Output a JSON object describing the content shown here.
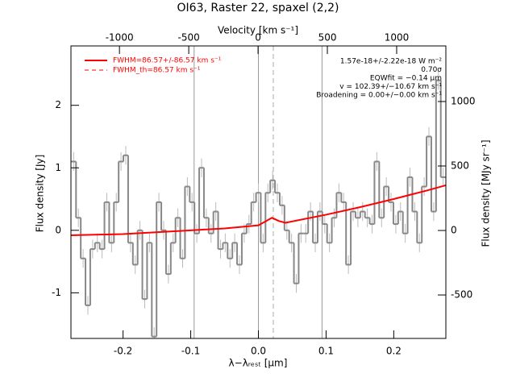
{
  "chart_data": {
    "type": "step",
    "title": "OI63, Raster 22, spaxel (2,2)",
    "xlabel": "λ−λᵣₑₛₜ [μm]",
    "ylabel": "Flux density [Jy]",
    "x2label": "Velocity [km s⁻¹]",
    "y2label": "Flux density [MJy sr⁻¹]",
    "xlim": [
      -0.277,
      0.277
    ],
    "ylim": [
      -1.73,
      2.95
    ],
    "xticks": [
      -0.2,
      -0.1,
      {
        "value": 0,
        "label": "0.0"
      },
      0.1,
      0.2
    ],
    "yticks": [
      -1,
      0,
      1,
      2
    ],
    "x2lim": [
      -1350,
      1355
    ],
    "x2ticks": [
      -1000,
      -500,
      0,
      500,
      1000
    ],
    "y2lim": [
      -837,
      1431
    ],
    "y2ticks": [
      -500,
      0,
      500,
      1000
    ],
    "vlines": [
      -0.095,
      0,
      0.094
    ],
    "vline_dashed": 0.022,
    "spectrum": {
      "color": "#888888",
      "error": 0.15,
      "x": [
        -0.273,
        -0.266,
        -0.259,
        -0.252,
        -0.245,
        -0.238,
        -0.231,
        -0.224,
        -0.217,
        -0.21,
        -0.203,
        -0.196,
        -0.189,
        -0.182,
        -0.175,
        -0.168,
        -0.161,
        -0.154,
        -0.147,
        -0.14,
        -0.133,
        -0.126,
        -0.119,
        -0.112,
        -0.105,
        -0.098,
        -0.091,
        -0.084,
        -0.077,
        -0.07,
        -0.063,
        -0.056,
        -0.049,
        -0.042,
        -0.035,
        -0.028,
        -0.021,
        -0.014,
        -0.007,
        0,
        0.007,
        0.014,
        0.021,
        0.028,
        0.035,
        0.042,
        0.049,
        0.056,
        0.063,
        0.07,
        0.077,
        0.084,
        0.091,
        0.098,
        0.105,
        0.112,
        0.119,
        0.126,
        0.133,
        0.14,
        0.147,
        0.154,
        0.161,
        0.168,
        0.175,
        0.182,
        0.189,
        0.196,
        0.203,
        0.21,
        0.217,
        0.224,
        0.231,
        0.238,
        0.245,
        0.252,
        0.259,
        0.266,
        0.273
      ],
      "values": [
        1.1,
        0.2,
        -0.45,
        -1.2,
        -0.3,
        -0.2,
        -0.3,
        0.45,
        -0.2,
        0.45,
        1.1,
        1.2,
        -0.2,
        -0.55,
        0,
        -1.1,
        -0.2,
        -1.7,
        0.45,
        0,
        -0.7,
        -0.2,
        0.2,
        -0.45,
        0.7,
        0.45,
        -0.05,
        1.0,
        0.2,
        -0.05,
        0.3,
        -0.3,
        -0.2,
        -0.45,
        -0.2,
        -0.55,
        -0.05,
        0.1,
        0.45,
        0.6,
        -0.2,
        0.6,
        0.8,
        0.6,
        0.4,
        0,
        -0.2,
        -0.85,
        -0.05,
        -0.05,
        0.3,
        -0.2,
        0.3,
        0.1,
        -0.2,
        0.2,
        0.6,
        0.45,
        -0.55,
        0.3,
        0.2,
        0.3,
        0.2,
        0.1,
        1.1,
        0.2,
        0.7,
        0.45,
        0.1,
        0.3,
        -0.05,
        0.85,
        0.3,
        -0.2,
        0.7,
        1.5,
        0.3,
        2.4,
        0.85
      ]
    },
    "series": [
      {
        "name": "FWHM=86.57+/-86.57 km s⁻¹",
        "color": "#ff0000",
        "dashed": false,
        "x": [
          -0.277,
          -0.2,
          -0.1,
          -0.05,
          0,
          0.01,
          0.02,
          0.03,
          0.04,
          0.1,
          0.15,
          0.2,
          0.25,
          0.277
        ],
        "values": [
          -0.08,
          -0.06,
          0,
          0.03,
          0.08,
          0.14,
          0.2,
          0.15,
          0.12,
          0.25,
          0.37,
          0.5,
          0.64,
          0.72
        ]
      },
      {
        "name": "FWHM_th=86.57 km s⁻¹",
        "color": "#ff0000",
        "dashed": true,
        "x": [
          -0.277,
          -0.2,
          -0.1,
          -0.05,
          0,
          0.01,
          0.02,
          0.03,
          0.04,
          0.1,
          0.15,
          0.2,
          0.25,
          0.277
        ],
        "values": [
          -0.08,
          -0.06,
          0,
          0.03,
          0.08,
          0.14,
          0.2,
          0.15,
          0.12,
          0.25,
          0.37,
          0.5,
          0.64,
          0.72
        ]
      }
    ],
    "annotations": [
      "1.57e-18+/-2.22e-18 W m⁻²",
      "0.70σ",
      "EQWfit = −0.14 μm",
      "v = 102.39+/−10.67 km s⁻¹",
      "Broadening = 0.00+/−0.00 km s⁻¹"
    ]
  }
}
